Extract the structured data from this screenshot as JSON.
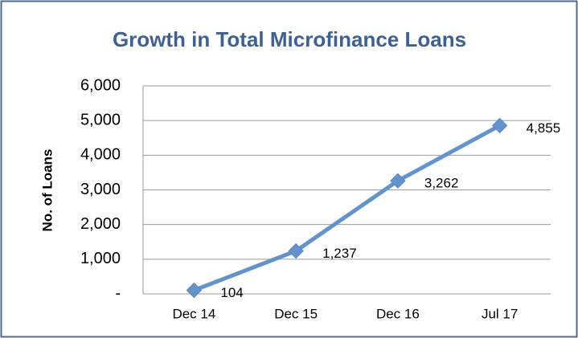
{
  "chart_data": {
    "type": "line",
    "title": "Growth in Total Microfinance Loans",
    "y_label": "No. of Loans",
    "categories": [
      "Dec 14",
      "Dec 15",
      "Dec 16",
      "Jul 17"
    ],
    "values": [
      104,
      1237,
      3262,
      4855
    ],
    "value_labels": [
      "104",
      "1,237",
      "3,262",
      "4,855"
    ],
    "color": "#6393cc",
    "ylim": [
      0,
      6000
    ],
    "yticks": [
      {
        "value": 0,
        "label": "-"
      },
      {
        "value": 1000,
        "label": "1,000"
      },
      {
        "value": 2000,
        "label": "2,000"
      },
      {
        "value": 3000,
        "label": "3,000"
      },
      {
        "value": 4000,
        "label": "4,000"
      },
      {
        "value": 5000,
        "label": "5,000"
      },
      {
        "value": 6000,
        "label": "6,000"
      }
    ],
    "grid": true
  }
}
